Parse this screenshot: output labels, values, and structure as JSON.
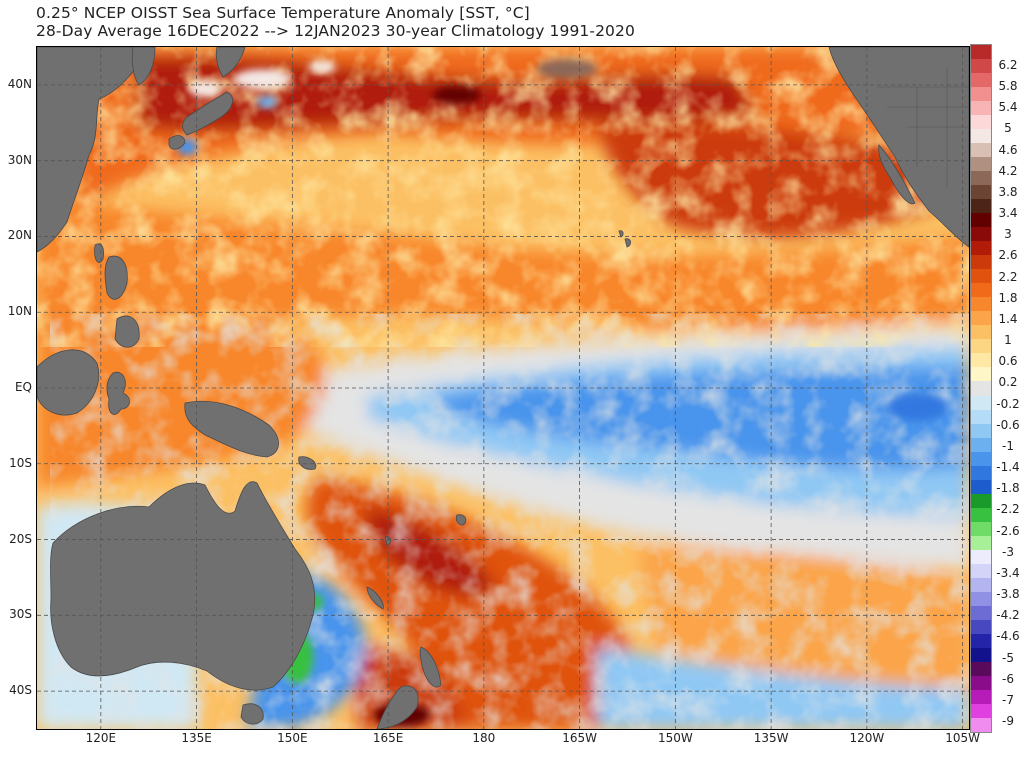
{
  "header": {
    "title_line1": "0.25° NCEP OISST Sea Surface Temperature Anomaly [SST, °C]",
    "title_line2": "28-Day Average 16DEC2022 --> 12JAN2023   30-year Climatology 1991-2020"
  },
  "map": {
    "lat_range": [
      -45,
      45
    ],
    "lon_range_east": [
      110,
      256
    ],
    "lat_labels": [
      "40N",
      "30N",
      "20N",
      "10N",
      "EQ",
      "10S",
      "20S",
      "30S",
      "40S"
    ],
    "lat_values": [
      40,
      30,
      20,
      10,
      0,
      -10,
      -20,
      -30,
      -40
    ],
    "lon_labels": [
      "120E",
      "135E",
      "150E",
      "165E",
      "180",
      "165W",
      "150W",
      "135W",
      "120W",
      "105W"
    ],
    "lon_values": [
      120,
      135,
      150,
      165,
      180,
      195,
      210,
      225,
      240,
      255
    ],
    "grid": "dashed",
    "land_color": "#707070"
  },
  "colorbar": {
    "labels": [
      "6.2",
      "5.8",
      "5.4",
      "5",
      "4.6",
      "4.2",
      "3.8",
      "3.4",
      "3",
      "2.6",
      "2.2",
      "1.8",
      "1.4",
      "1",
      "0.6",
      "0.2",
      "-0.2",
      "-0.6",
      "-1",
      "-1.4",
      "-1.8",
      "-2.2",
      "-2.6",
      "-3",
      "-3.4",
      "-3.8",
      "-4.2",
      "-4.6",
      "-5",
      "-6",
      "-7",
      "-9"
    ],
    "colors": [
      "#b82a2a",
      "#d04848",
      "#e46868",
      "#f29090",
      "#f8b4b4",
      "#fcd8d8",
      "#f4e8e4",
      "#d8c0b4",
      "#b09080",
      "#8c6858",
      "#6c4434",
      "#4c2418",
      "#620000",
      "#8a0a0a",
      "#b01c08",
      "#cc3a0c",
      "#e0520e",
      "#f06a1a",
      "#f8862c",
      "#fba44a",
      "#fcc064",
      "#fdd684",
      "#fee8a4",
      "#fff6c8",
      "#e4e4e4",
      "#d0e8f4",
      "#b4dcf8",
      "#90c8f4",
      "#6cb0f0",
      "#4a94ec",
      "#3078e0",
      "#1c5ccc",
      "#1a9a2a",
      "#38c040",
      "#70dc68",
      "#a8f098",
      "#ececfc",
      "#d4d4f8",
      "#b4b4f0",
      "#9090e4",
      "#6c6cd4",
      "#4848c0",
      "#2424a8",
      "#12128c",
      "#5a0a5a",
      "#8a0c8a",
      "#b81cb8",
      "#e040e0",
      "#f08cf0"
    ]
  }
}
